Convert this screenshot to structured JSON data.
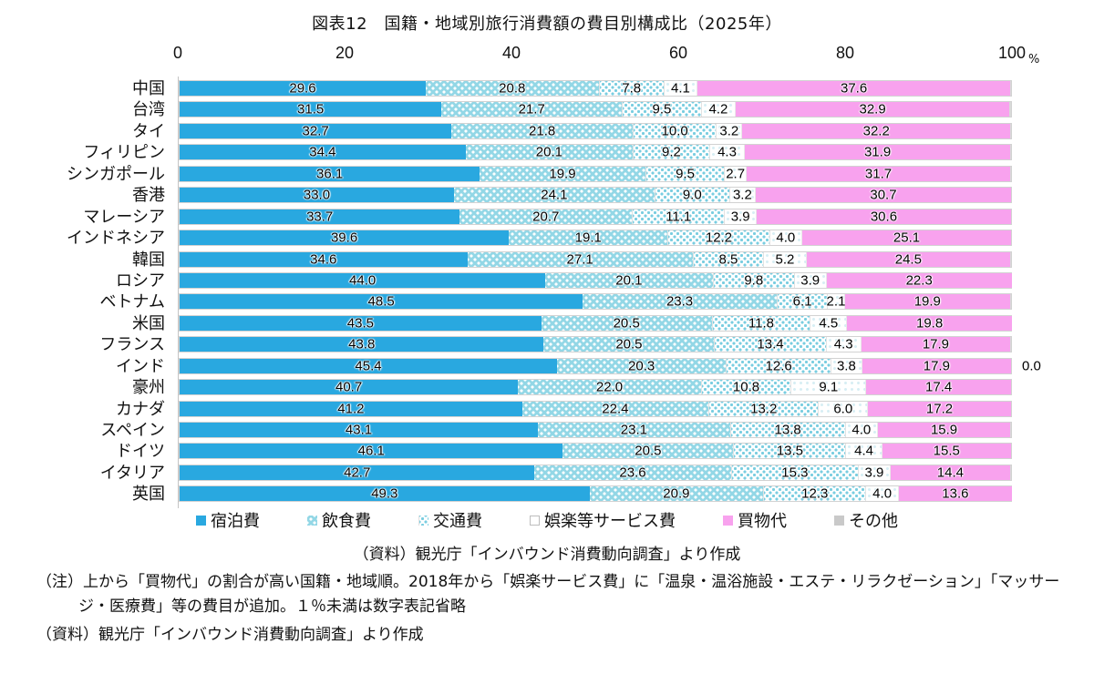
{
  "title": "図表12　国籍・地域別旅行消費額の費目別構成比（2025年）",
  "axis": {
    "ticks": [
      "0",
      "20",
      "40",
      "60",
      "80",
      "100"
    ],
    "unit": "%",
    "xlim": [
      0,
      100
    ]
  },
  "legend": [
    {
      "key": "lodging",
      "label": "宿泊費"
    },
    {
      "key": "food",
      "label": "飲食費"
    },
    {
      "key": "transport",
      "label": "交通費"
    },
    {
      "key": "entertainment",
      "label": "娯楽等サービス費"
    },
    {
      "key": "shopping",
      "label": "買物代"
    },
    {
      "key": "other",
      "label": "その他"
    }
  ],
  "chart_data": {
    "type": "bar",
    "orientation": "horizontal-stacked",
    "title": "図表12　国籍・地域別旅行消費額の費目別構成比（2025年）",
    "xlim": [
      0,
      100
    ],
    "unit": "%",
    "legend_position": "bottom",
    "categories": [
      "中国",
      "台湾",
      "タイ",
      "フィリピン",
      "シンガポール",
      "香港",
      "マレーシア",
      "インドネシア",
      "韓国",
      "ロシア",
      "ベトナム",
      "米国",
      "フランス",
      "インド",
      "豪州",
      "カナダ",
      "スペイン",
      "ドイツ",
      "イタリア",
      "英国"
    ],
    "series": [
      {
        "name": "宿泊費",
        "values": [
          29.6,
          31.5,
          32.7,
          34.4,
          36.1,
          33.0,
          33.7,
          39.6,
          34.6,
          44.0,
          48.5,
          43.5,
          43.8,
          45.4,
          40.7,
          41.2,
          43.1,
          46.1,
          42.7,
          49.3
        ]
      },
      {
        "name": "飲食費",
        "values": [
          20.8,
          21.7,
          21.8,
          20.1,
          19.9,
          24.1,
          20.7,
          19.1,
          27.1,
          20.1,
          23.3,
          20.5,
          20.5,
          20.3,
          22.0,
          22.4,
          23.1,
          20.5,
          23.6,
          20.9
        ]
      },
      {
        "name": "交通費",
        "values": [
          7.8,
          9.5,
          10.0,
          9.2,
          9.5,
          9.0,
          11.1,
          12.2,
          8.5,
          9.8,
          6.1,
          11.8,
          13.4,
          12.6,
          10.8,
          13.2,
          13.8,
          13.5,
          15.3,
          12.3
        ]
      },
      {
        "name": "娯楽等サービス費",
        "values": [
          4.1,
          4.2,
          3.2,
          4.3,
          2.7,
          3.2,
          3.9,
          4.0,
          5.2,
          3.9,
          2.1,
          4.5,
          4.3,
          3.8,
          9.1,
          6.0,
          4.0,
          4.4,
          3.9,
          4.0
        ]
      },
      {
        "name": "買物代",
        "values": [
          37.6,
          32.9,
          32.2,
          31.9,
          31.7,
          30.7,
          30.6,
          25.1,
          24.5,
          22.3,
          19.9,
          19.8,
          17.9,
          17.9,
          17.4,
          17.2,
          15.9,
          15.5,
          14.4,
          13.6
        ]
      },
      {
        "name": "その他",
        "values": [
          null,
          null,
          null,
          null,
          null,
          null,
          null,
          null,
          null,
          null,
          null,
          null,
          null,
          0.0,
          null,
          null,
          null,
          null,
          null,
          null
        ]
      }
    ]
  },
  "source_inner": "（資料）観光庁「インバウンド消費動向調査」より作成",
  "notes": {
    "note_prefix": "（注）",
    "note_text": "上から「買物代」の割合が高い国籍・地域順。2018年から「娯楽サービス費」に「温泉・温浴施設・エステ・リラクゼーション」「マッサージ・医療費」等の費目が追加。１％未満は数字表記省略",
    "source_bottom": "（資料）観光庁「インバウンド消費動向調査」より作成"
  },
  "colors": {
    "lodging": "#29a8e0",
    "food_base": "#93d7e6",
    "transport_dot": "#79cde0",
    "entertainment": "#ffffff",
    "shopping": "#f8a2ee",
    "other": "#c9c9c9",
    "bar_border": "#d2d2d2"
  }
}
